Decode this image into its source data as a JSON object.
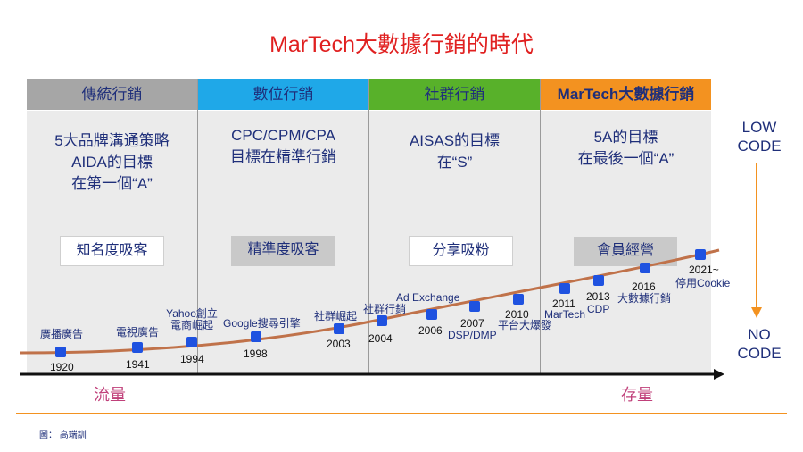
{
  "title": "MarTech大數據行銷的時代",
  "columns": [
    {
      "header": "傳統行銷",
      "desc": [
        "5大品牌溝通策略",
        "AIDA的目標",
        "在第一個“A”"
      ],
      "box": "知名度吸客"
    },
    {
      "header": "數位行銷",
      "desc": [
        "CPC/CPM/CPA",
        "目標在精準行銷"
      ],
      "box": "精準度吸客"
    },
    {
      "header": "社群行銷",
      "desc": [
        "AISAS的目標",
        "在“S”"
      ],
      "box": "分享吸粉"
    },
    {
      "header": "MarTech大數據行銷",
      "desc": [
        "5A的目標",
        "在最後一個“A”"
      ],
      "box": "會員經營"
    }
  ],
  "colors": {
    "traditional": "#a6a6a6",
    "digital": "#1fa8e8",
    "social": "#58b12a",
    "martech": "#f39220",
    "marker": "#1f52e0",
    "curve": "#c0724a"
  },
  "milestones": [
    {
      "label": "廣播廣告",
      "year": "1920"
    },
    {
      "label": "電視廣告",
      "year": "1941"
    },
    {
      "label": "Yahoo創立\n電商崛起",
      "year": "1994"
    },
    {
      "label": "Google搜尋引擎",
      "year": "1998"
    },
    {
      "label": "社群崛起",
      "year": "2003"
    },
    {
      "label": "社群行銷",
      "year": "2004"
    },
    {
      "label": "Ad Exchange",
      "year": "2006"
    },
    {
      "label": "DSP/DMP",
      "year": "2007"
    },
    {
      "label": "平台大爆發",
      "year": "2010"
    },
    {
      "label": "MarTech",
      "year": "2011"
    },
    {
      "label": "CDP",
      "year": "2013"
    },
    {
      "label": "大數據行銷",
      "year": "2016"
    },
    {
      "label": "停用Cookie",
      "year": "2021~"
    }
  ],
  "side": {
    "top": "LOW\nCODE",
    "bottom": "NO\nCODE"
  },
  "axis": {
    "left": "流量",
    "right": "存量"
  },
  "credit": "圖：  高端訓"
}
